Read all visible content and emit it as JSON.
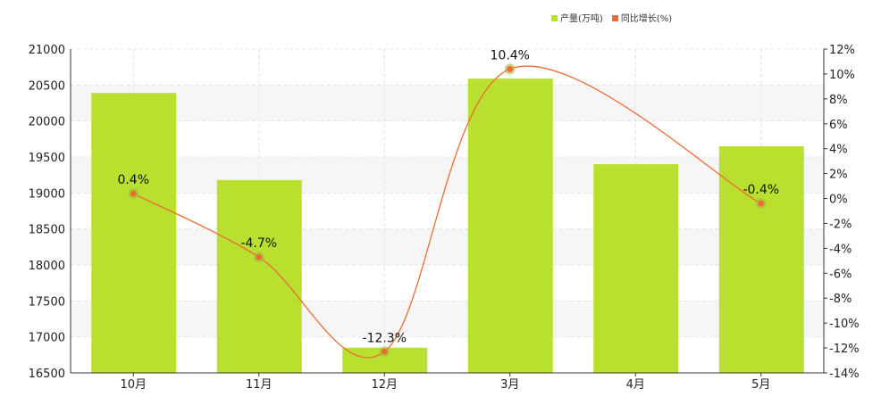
{
  "chart_data": {
    "type": "bar+line",
    "categories": [
      "10月",
      "11月",
      "12月",
      "3月",
      "4月",
      "5月"
    ],
    "series": [
      {
        "name": "产量(万吨)",
        "type": "bar",
        "axis": "left",
        "color": "#b9e02e",
        "values": [
          20390,
          19180,
          16850,
          20590,
          19400,
          19650
        ]
      },
      {
        "name": "同比增长(%)",
        "type": "line",
        "axis": "right",
        "color": "#ee6a36",
        "values": [
          0.4,
          -4.7,
          -12.3,
          10.4,
          null,
          -0.4
        ],
        "labels": [
          "0.4%",
          "-4.7%",
          "-12.3%",
          "10.4%",
          "",
          "-0.4%"
        ]
      }
    ],
    "left_axis": {
      "ylim": [
        16500,
        21000
      ],
      "ticks": [
        16500,
        17000,
        17500,
        18000,
        18500,
        19000,
        19500,
        20000,
        20500,
        21000
      ]
    },
    "right_axis": {
      "ylim": [
        -14,
        12
      ],
      "ticks": [
        "-14%",
        "-12%",
        "-10%",
        "-8%",
        "-6%",
        "-4%",
        "-2%",
        "0%",
        "2%",
        "4%",
        "6%",
        "8%",
        "10%",
        "12%"
      ]
    },
    "legend_placement": "top-right",
    "grid": true
  }
}
